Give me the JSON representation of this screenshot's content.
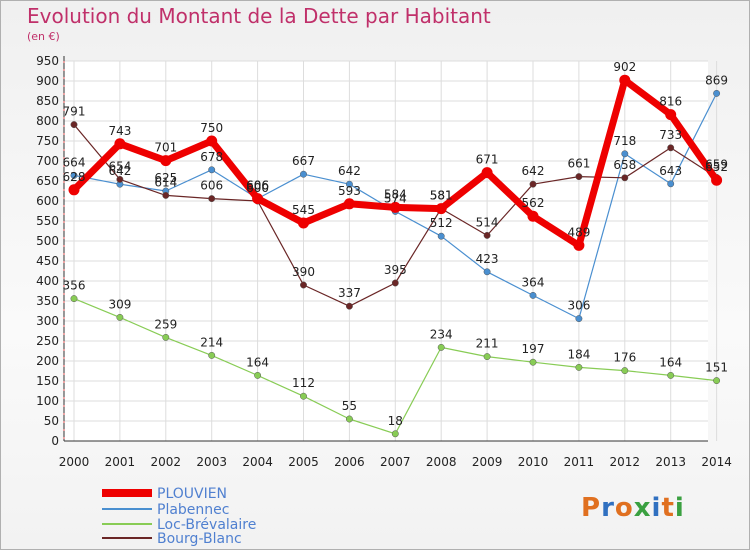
{
  "title": "Evolution du Montant de la Dette par Habitant",
  "subtitle": "(en €)",
  "logo": {
    "text": "Proxiti",
    "colors": [
      "#e07020",
      "#3070c0",
      "#e07020",
      "#3aa040",
      "#3070c0",
      "#e07020",
      "#3aa040"
    ]
  },
  "chart_data": {
    "type": "line",
    "x": [
      "2000",
      "2001",
      "2002",
      "2003",
      "2004",
      "2005",
      "2006",
      "2007",
      "2008",
      "2009",
      "2010",
      "2011",
      "2012",
      "2013",
      "2014"
    ],
    "ylim": [
      0,
      950
    ],
    "yticks": [
      0,
      50,
      100,
      150,
      200,
      250,
      300,
      350,
      400,
      450,
      500,
      550,
      600,
      650,
      700,
      750,
      800,
      850,
      900,
      950
    ],
    "grid": true,
    "legend_position": "bottom-left",
    "series": [
      {
        "name": "PLOUVIEN",
        "color": "#ee0000",
        "values": [
          628,
          743,
          701,
          750,
          606,
          545,
          593,
          584,
          581,
          671,
          562,
          489,
          902,
          816,
          652
        ]
      },
      {
        "name": "Plabennec",
        "color": "#4a8fd0",
        "values": [
          664,
          642,
          625,
          678,
          606,
          667,
          642,
          574,
          512,
          423,
          364,
          306,
          718,
          643,
          869
        ]
      },
      {
        "name": "Loc-Brévalaire",
        "color": "#88cc55",
        "values": [
          356,
          309,
          259,
          214,
          164,
          112,
          55,
          18,
          234,
          211,
          197,
          184,
          176,
          164,
          151
        ]
      },
      {
        "name": "Bourg-Blanc",
        "color": "#6a2626",
        "values": [
          791,
          654,
          614,
          606,
          600,
          390,
          337,
          395,
          581,
          514,
          642,
          661,
          658,
          733,
          659
        ]
      }
    ],
    "data_labels": [
      [
        "628",
        "743",
        "701",
        "750",
        "606",
        "545",
        "593",
        "584",
        "581",
        "671",
        "562",
        "489",
        "902",
        "816",
        "652"
      ],
      [
        "664",
        "642",
        "625",
        "678",
        "606",
        "667",
        "642",
        "574",
        "512",
        "423",
        "364",
        "306",
        "718",
        "643",
        "869"
      ],
      [
        "356",
        "309",
        "259",
        "214",
        "164",
        "112",
        "55",
        "18",
        "234",
        "211",
        "197",
        "184",
        "176",
        "164",
        "151"
      ],
      [
        "791",
        "654",
        "614",
        "606",
        "600",
        "390",
        "337",
        "395",
        "581",
        "514",
        "642",
        "661",
        "658",
        "733",
        "659"
      ]
    ]
  }
}
